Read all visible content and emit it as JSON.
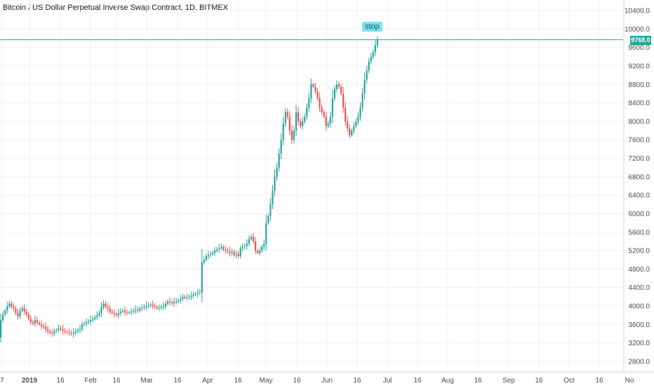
{
  "header": {
    "title": "Bitcoin / US Dollar Perpetual Inverse Swap Contract, 1D, BITMEX"
  },
  "price_line": {
    "value": "9768.0",
    "color": "#26a69a"
  },
  "annotation": {
    "text": "stop"
  },
  "colors": {
    "up": "#26a69a",
    "down": "#ef5350",
    "grid": "#eef0f3"
  },
  "chart_data": {
    "type": "candlestick",
    "title": "Bitcoin / US Dollar Perpetual Inverse Swap Contract, 1D, BITMEX",
    "ylim": [
      2600,
      10500
    ],
    "y_ticks": [
      "10400.0",
      "10000.0",
      "9600.0",
      "9200.0",
      "8800.0",
      "8400.0",
      "8000.0",
      "7600.0",
      "7200.0",
      "6800.0",
      "6400.0",
      "6000.0",
      "5600.0",
      "5200.0",
      "4800.0",
      "4400.0",
      "4000.0",
      "3600.0",
      "3200.0",
      "2800.0"
    ],
    "x_ticks": [
      "7",
      "2019",
      "16",
      "Feb",
      "16",
      "Mar",
      "16",
      "Apr",
      "16",
      "May",
      "16",
      "Jun",
      "16",
      "Jul",
      "16",
      "Aug",
      "16",
      "Sep",
      "16",
      "Oct",
      "16",
      "No"
    ],
    "grid": true,
    "series": [
      {
        "segment": "Dec 28 - Jan 10",
        "closes": [
          3700,
          3820,
          3900,
          4000,
          4050,
          3980,
          3950,
          3850,
          3780,
          3900,
          3950,
          3880,
          3820,
          3720
        ]
      },
      {
        "segment": "Jan 11 - Jan 31",
        "closes": [
          3650,
          3620,
          3700,
          3640,
          3600,
          3560,
          3550,
          3500,
          3450,
          3420,
          3400,
          3460,
          3480,
          3520,
          3500,
          3460,
          3440,
          3430,
          3420,
          3400,
          3420
        ]
      },
      {
        "segment": "Feb 1 - Feb 28",
        "closes": [
          3450,
          3480,
          3500,
          3600,
          3620,
          3650,
          3660,
          3700,
          3720,
          3760,
          3800,
          3850,
          3980,
          4050,
          3980,
          3950,
          3880,
          3850,
          3820,
          3800,
          3850,
          3880,
          3900,
          3860,
          3850,
          3860,
          3880,
          3900
        ]
      },
      {
        "segment": "Mar 1 - Mar 31",
        "closes": [
          3920,
          3900,
          3950,
          3960,
          3980,
          4000,
          4010,
          4030,
          4000,
          3980,
          3950,
          3960,
          3980,
          3990,
          4050,
          4100,
          4080,
          4060,
          4090,
          4100,
          4120,
          4150,
          4200,
          4180,
          4190,
          4200,
          4220,
          4250,
          4260,
          4280,
          4300
        ]
      },
      {
        "segment": "Apr 1 - Apr 30",
        "closes": [
          4950,
          5000,
          5080,
          5100,
          5120,
          5150,
          5200,
          5230,
          5250,
          5280,
          5220,
          5200,
          5180,
          5150,
          5170,
          5100,
          5120,
          5080,
          5250,
          5280,
          5300,
          5350,
          5450,
          5500,
          5400,
          5200,
          5150,
          5200,
          5280,
          5350
        ]
      },
      {
        "segment": "May 1 - May 31",
        "closes": [
          5800,
          5950,
          6200,
          6500,
          6800,
          7000,
          7300,
          7600,
          7950,
          8200,
          8100,
          7800,
          7600,
          7800,
          8200,
          8000,
          7900,
          8000,
          8100,
          8300,
          8500,
          8800,
          8750,
          8650,
          8500,
          8300,
          8200,
          8100,
          7900,
          7950,
          8100
        ]
      },
      {
        "segment": "Jun 1 - Jun 22",
        "closes": [
          8500,
          8700,
          8800,
          8750,
          8600,
          8300,
          8000,
          7850,
          7700,
          7800,
          7900,
          8000,
          8100,
          8300,
          8600,
          8900,
          9100,
          9300,
          9400,
          9500,
          9650,
          9768
        ]
      }
    ]
  }
}
